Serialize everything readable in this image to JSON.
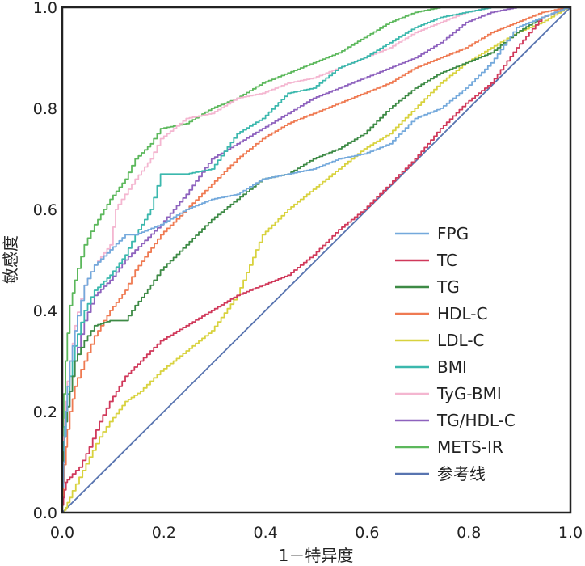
{
  "chart_data": {
    "type": "line",
    "title": "",
    "xlabel": "1－特异度",
    "ylabel": "敏感度",
    "xlim": [
      0.0,
      1.0
    ],
    "ylim": [
      0.0,
      1.0
    ],
    "xticks": [
      "0.0",
      "0.2",
      "0.4",
      "0.6",
      "0.8",
      "1.0"
    ],
    "yticks": [
      "0.0",
      "0.2",
      "0.4",
      "0.6",
      "0.8",
      "1.0"
    ],
    "grid": false,
    "legend_position": "lower-right",
    "series": [
      {
        "name": "FPG",
        "color": "#74a9dc",
        "x": [
          0,
          0.005,
          0.01,
          0.02,
          0.03,
          0.05,
          0.07,
          0.1,
          0.13,
          0.15,
          0.2,
          0.25,
          0.3,
          0.35,
          0.4,
          0.45,
          0.5,
          0.55,
          0.6,
          0.65,
          0.7,
          0.75,
          0.8,
          0.85,
          0.9,
          0.95,
          1.0
        ],
        "y": [
          0,
          0.1,
          0.2,
          0.3,
          0.36,
          0.45,
          0.49,
          0.52,
          0.55,
          0.55,
          0.57,
          0.6,
          0.62,
          0.63,
          0.66,
          0.67,
          0.68,
          0.7,
          0.71,
          0.73,
          0.78,
          0.8,
          0.84,
          0.89,
          0.96,
          0.98,
          1.0
        ]
      },
      {
        "name": "TC",
        "color": "#d0385a",
        "x": [
          0,
          0.005,
          0.01,
          0.02,
          0.04,
          0.06,
          0.08,
          0.1,
          0.13,
          0.16,
          0.2,
          0.25,
          0.3,
          0.35,
          0.4,
          0.45,
          0.5,
          0.55,
          0.6,
          0.65,
          0.7,
          0.75,
          0.8,
          0.85,
          0.9,
          0.95,
          1.0
        ],
        "y": [
          0,
          0.03,
          0.06,
          0.07,
          0.09,
          0.13,
          0.18,
          0.22,
          0.27,
          0.3,
          0.34,
          0.37,
          0.4,
          0.43,
          0.45,
          0.47,
          0.51,
          0.56,
          0.6,
          0.65,
          0.7,
          0.76,
          0.81,
          0.85,
          0.92,
          0.98,
          1.0
        ]
      },
      {
        "name": "TG",
        "color": "#3d8a45",
        "x": [
          0,
          0.005,
          0.01,
          0.02,
          0.03,
          0.05,
          0.07,
          0.1,
          0.13,
          0.15,
          0.18,
          0.2,
          0.25,
          0.3,
          0.35,
          0.4,
          0.45,
          0.5,
          0.55,
          0.6,
          0.65,
          0.7,
          0.75,
          0.8,
          0.85,
          0.9,
          0.95,
          1.0
        ],
        "y": [
          0,
          0.12,
          0.18,
          0.24,
          0.3,
          0.34,
          0.37,
          0.38,
          0.38,
          0.41,
          0.45,
          0.48,
          0.53,
          0.58,
          0.62,
          0.66,
          0.67,
          0.7,
          0.72,
          0.75,
          0.8,
          0.84,
          0.87,
          0.89,
          0.91,
          0.95,
          0.98,
          1.0
        ]
      },
      {
        "name": "HDL-C",
        "color": "#ef7a52",
        "x": [
          0,
          0.005,
          0.01,
          0.02,
          0.03,
          0.05,
          0.07,
          0.1,
          0.13,
          0.15,
          0.2,
          0.25,
          0.3,
          0.35,
          0.4,
          0.45,
          0.5,
          0.55,
          0.6,
          0.65,
          0.7,
          0.75,
          0.8,
          0.85,
          0.9,
          0.95,
          1.0
        ],
        "y": [
          0,
          0.06,
          0.13,
          0.2,
          0.25,
          0.3,
          0.35,
          0.4,
          0.44,
          0.48,
          0.55,
          0.6,
          0.65,
          0.7,
          0.74,
          0.77,
          0.79,
          0.81,
          0.83,
          0.85,
          0.88,
          0.9,
          0.92,
          0.95,
          0.97,
          0.99,
          1.0
        ]
      },
      {
        "name": "LDL-C",
        "color": "#d8d23e",
        "x": [
          0,
          0.005,
          0.01,
          0.02,
          0.04,
          0.06,
          0.08,
          0.1,
          0.13,
          0.16,
          0.2,
          0.25,
          0.3,
          0.35,
          0.4,
          0.45,
          0.5,
          0.55,
          0.6,
          0.65,
          0.7,
          0.75,
          0.8,
          0.85,
          0.9,
          0.95,
          1.0
        ],
        "y": [
          0,
          0.0,
          0.01,
          0.03,
          0.07,
          0.11,
          0.15,
          0.18,
          0.22,
          0.24,
          0.28,
          0.32,
          0.36,
          0.43,
          0.55,
          0.6,
          0.64,
          0.68,
          0.72,
          0.75,
          0.8,
          0.85,
          0.89,
          0.92,
          0.95,
          0.97,
          1.0
        ]
      },
      {
        "name": "BMI",
        "color": "#3bb8ad",
        "x": [
          0,
          0.005,
          0.01,
          0.02,
          0.03,
          0.05,
          0.07,
          0.1,
          0.13,
          0.15,
          0.18,
          0.2,
          0.25,
          0.3,
          0.35,
          0.4,
          0.45,
          0.5,
          0.55,
          0.6,
          0.65,
          0.7,
          0.75,
          0.8,
          0.85,
          0.9,
          0.95,
          1.0
        ],
        "y": [
          0,
          0.14,
          0.2,
          0.27,
          0.33,
          0.4,
          0.44,
          0.47,
          0.51,
          0.55,
          0.6,
          0.67,
          0.67,
          0.68,
          0.75,
          0.78,
          0.83,
          0.84,
          0.88,
          0.9,
          0.93,
          0.96,
          0.98,
          0.99,
          1.0,
          1.0,
          1.0,
          1.0
        ]
      },
      {
        "name": "TyG-BMI",
        "color": "#f4b6d0",
        "x": [
          0,
          0.005,
          0.01,
          0.02,
          0.03,
          0.05,
          0.07,
          0.1,
          0.11,
          0.13,
          0.15,
          0.18,
          0.2,
          0.25,
          0.3,
          0.35,
          0.4,
          0.45,
          0.5,
          0.55,
          0.6,
          0.65,
          0.7,
          0.75,
          0.8,
          0.85,
          0.9,
          0.95,
          1.0
        ],
        "y": [
          0,
          0.15,
          0.22,
          0.3,
          0.37,
          0.45,
          0.49,
          0.53,
          0.6,
          0.63,
          0.66,
          0.7,
          0.74,
          0.78,
          0.79,
          0.82,
          0.83,
          0.85,
          0.86,
          0.88,
          0.9,
          0.92,
          0.95,
          0.97,
          0.99,
          1.0,
          1.0,
          1.0,
          1.0
        ]
      },
      {
        "name": "TG/HDL-C",
        "color": "#8e62be",
        "x": [
          0,
          0.005,
          0.01,
          0.02,
          0.03,
          0.05,
          0.07,
          0.1,
          0.13,
          0.15,
          0.2,
          0.25,
          0.3,
          0.35,
          0.4,
          0.45,
          0.5,
          0.55,
          0.6,
          0.65,
          0.7,
          0.75,
          0.8,
          0.85,
          0.9,
          0.95,
          1.0
        ],
        "y": [
          0,
          0.12,
          0.18,
          0.24,
          0.3,
          0.38,
          0.43,
          0.46,
          0.5,
          0.52,
          0.57,
          0.63,
          0.7,
          0.73,
          0.76,
          0.79,
          0.82,
          0.84,
          0.86,
          0.88,
          0.9,
          0.93,
          0.97,
          0.99,
          1.0,
          1.0,
          1.0
        ]
      },
      {
        "name": "METS-IR",
        "color": "#5cb85c",
        "x": [
          0,
          0.003,
          0.01,
          0.02,
          0.03,
          0.05,
          0.07,
          0.1,
          0.13,
          0.15,
          0.18,
          0.2,
          0.25,
          0.3,
          0.35,
          0.4,
          0.45,
          0.5,
          0.55,
          0.6,
          0.65,
          0.7,
          0.75,
          0.8,
          0.9,
          1.0
        ],
        "y": [
          0,
          0.17,
          0.3,
          0.41,
          0.46,
          0.53,
          0.57,
          0.62,
          0.66,
          0.7,
          0.73,
          0.76,
          0.77,
          0.8,
          0.82,
          0.85,
          0.87,
          0.89,
          0.91,
          0.94,
          0.97,
          0.99,
          1.0,
          1.0,
          1.0,
          1.0
        ]
      },
      {
        "name": "参考线",
        "color": "#5874b0",
        "x": [
          0,
          1
        ],
        "y": [
          0,
          1
        ]
      }
    ]
  }
}
